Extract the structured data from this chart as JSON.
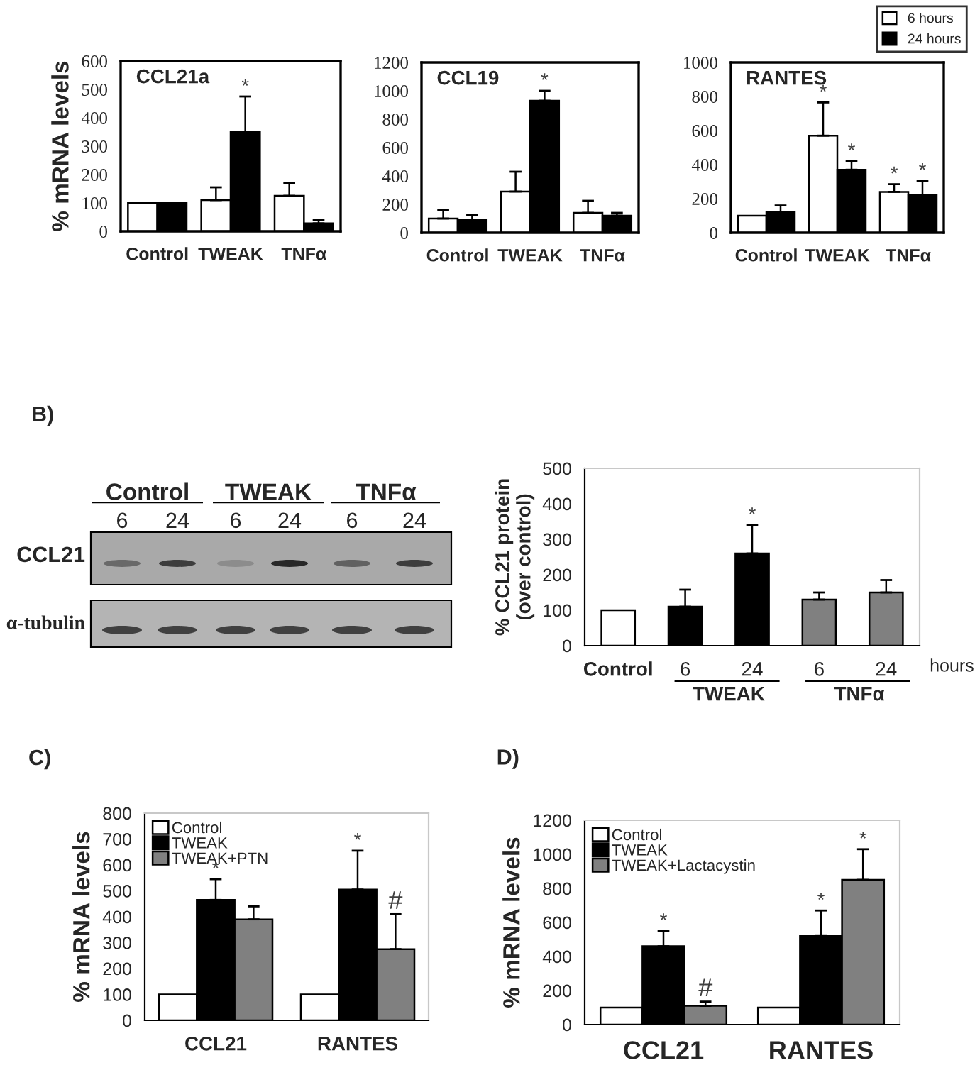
{
  "chart_data": [
    {
      "type": "bar",
      "categories": [
        "Control",
        "TWEAK",
        "TNFα"
      ],
      "ylabel": "% mRNA levels",
      "title": "CCL21a",
      "ylim": [
        0,
        600
      ],
      "yticks": [
        0,
        100,
        200,
        300,
        400,
        500,
        600
      ],
      "legend": false,
      "series": [
        {
          "color": "#ffffff",
          "values": [
            100,
            110,
            125
          ],
          "errors": [
            null,
            [
              110,
              155
            ],
            [
              125,
              170
            ]
          ]
        },
        {
          "color": "#000000",
          "values": [
            100,
            350,
            28
          ],
          "errors": [
            null,
            [
              350,
              475
            ],
            [
              28,
              40
            ]
          ]
        }
      ],
      "annotations": [
        "*"
      ]
    },
    {
      "type": "bar",
      "categories": [
        "Control",
        "TWEAK",
        "TNFα"
      ],
      "title": "CCL19",
      "ylim": [
        0,
        1200
      ],
      "yticks": [
        0,
        200,
        400,
        600,
        800,
        1000,
        1200
      ],
      "legend": false,
      "series": [
        {
          "color": "#ffffff",
          "values": [
            100,
            290,
            140
          ],
          "errors": [
            [
              100,
              160
            ],
            [
              290,
              430
            ],
            [
              140,
              225
            ]
          ]
        },
        {
          "color": "#000000",
          "values": [
            90,
            930,
            120
          ],
          "errors": [
            [
              90,
              125
            ],
            [
              930,
              1000
            ],
            [
              120,
              140
            ]
          ]
        }
      ],
      "annotations": [
        "*"
      ]
    },
    {
      "type": "bar",
      "categories": [
        "Control",
        "TWEAK",
        "TNFα"
      ],
      "title": "RANTES",
      "ylim": [
        0,
        1000
      ],
      "yticks": [
        0,
        200,
        400,
        600,
        800,
        1000
      ],
      "legend": "top right",
      "series": [
        {
          "name": "6 hours",
          "color": "#ffffff",
          "values": [
            100,
            570,
            240
          ],
          "errors": [
            null,
            [
              570,
              765
            ],
            [
              240,
              285
            ]
          ]
        },
        {
          "name": "24 hours",
          "color": "#000000",
          "values": [
            120,
            370,
            220
          ],
          "errors": [
            [
              120,
              160
            ],
            [
              370,
              420
            ],
            [
              220,
              305
            ]
          ]
        }
      ],
      "annotations": [
        "*",
        "*",
        "*",
        "*"
      ]
    },
    {
      "type": "other",
      "annotations": [
        "B)",
        "Control",
        "TWEAK",
        "TNFα",
        "6",
        "24",
        "6",
        "24",
        "6",
        "24",
        "CCL21",
        "α-tubulin"
      ]
    },
    {
      "type": "bar",
      "categories": [
        "Control",
        "6",
        "24",
        "6",
        "24"
      ],
      "ylabel": "% CCL21 protein\n(over control)",
      "ylim": [
        0,
        500
      ],
      "yticks": [
        0,
        100,
        200,
        300,
        400,
        500
      ],
      "legend": false,
      "values": [
        100,
        110,
        260,
        130,
        150
      ],
      "colors": [
        "#ffffff",
        "#000000",
        "#000000",
        "#808080",
        "#808080"
      ],
      "errors": [
        null,
        [
          110,
          158
        ],
        [
          260,
          340
        ],
        [
          130,
          150
        ],
        [
          150,
          185
        ]
      ],
      "annotations": [
        "*",
        "TWEAK",
        "TNFα",
        "hours"
      ]
    },
    {
      "type": "bar",
      "categories": [
        "CCL21",
        "RANTES"
      ],
      "ylabel": "% mRNA levels",
      "ylim": [
        0,
        800
      ],
      "yticks": [
        0,
        100,
        200,
        300,
        400,
        500,
        600,
        700,
        800
      ],
      "legend": "top left",
      "series": [
        {
          "name": "Control",
          "color": "#ffffff",
          "values": [
            100,
            100
          ]
        },
        {
          "name": "TWEAK",
          "color": "#000000",
          "values": [
            465,
            505
          ],
          "errors": [
            [
              465,
              545
            ],
            [
              505,
              655
            ]
          ]
        },
        {
          "name": "TWEAK+PTN",
          "color": "#808080",
          "values": [
            390,
            275
          ],
          "errors": [
            [
              390,
              440
            ],
            [
              275,
              410
            ]
          ]
        }
      ],
      "annotations": [
        "C)",
        "*",
        "*",
        "#"
      ]
    },
    {
      "type": "bar",
      "categories": [
        "CCL21",
        "RANTES"
      ],
      "ylabel": "% mRNA levels",
      "ylim": [
        0,
        1200
      ],
      "yticks": [
        0,
        200,
        400,
        600,
        800,
        1000,
        1200
      ],
      "legend": "top left",
      "series": [
        {
          "name": "Control",
          "color": "#ffffff",
          "values": [
            100,
            100
          ]
        },
        {
          "name": "TWEAK",
          "color": "#000000",
          "values": [
            460,
            520
          ],
          "errors": [
            [
              460,
              550
            ],
            [
              520,
              670
            ]
          ]
        },
        {
          "name": "TWEAK+Lactacystin",
          "color": "#808080",
          "values": [
            110,
            850
          ],
          "errors": [
            [
              110,
              135
            ],
            [
              850,
              1030
            ]
          ]
        }
      ],
      "annotations": [
        "D)",
        "*",
        "*",
        "*",
        "#"
      ]
    }
  ]
}
